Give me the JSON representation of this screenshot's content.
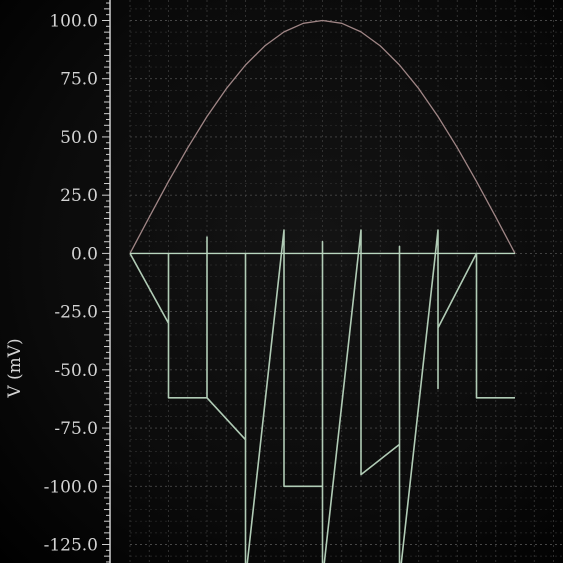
{
  "chart_data": {
    "type": "line",
    "xlabel": "",
    "ylabel": "V (mV)",
    "ylim": [
      -135,
      108
    ],
    "xlim": [
      0,
      10
    ],
    "yticks": [
      100,
      75,
      50,
      25,
      0,
      -25,
      -50,
      -75,
      -100,
      -125
    ],
    "ytick_labels": [
      "100.0",
      "75.0",
      "50.0",
      "25.0",
      "0.0",
      "-25.0",
      "-50.0",
      "-75.0",
      "-100.0",
      "-125.0"
    ],
    "grid": true,
    "series": [
      {
        "name": "",
        "color": "#a88c8c",
        "x": [
          0,
          0.5,
          1,
          1.5,
          2,
          2.5,
          3,
          3.5,
          4,
          4.5,
          5,
          5.5,
          6,
          6.5,
          7,
          7.5,
          8,
          8.5,
          9,
          9.5,
          10
        ],
        "y": [
          0,
          15.6,
          30.9,
          45.4,
          58.8,
          70.7,
          80.9,
          89.1,
          95.1,
          98.8,
          100,
          98.8,
          95.1,
          89.1,
          80.9,
          70.7,
          58.8,
          45.4,
          30.9,
          15.6,
          0
        ]
      },
      {
        "name": "",
        "color": "#b9d6bf",
        "x": [
          0,
          1,
          1,
          1,
          1,
          2,
          2,
          2,
          2,
          3,
          3,
          3,
          4,
          4,
          4,
          4,
          5,
          5,
          5,
          6,
          6,
          6,
          6,
          7,
          7,
          7,
          8,
          8,
          8,
          8,
          9,
          9,
          9,
          9,
          10
        ],
        "y": [
          0,
          -30,
          0,
          -62,
          -62,
          -62,
          7,
          -62,
          -62,
          -80,
          0,
          -140,
          10,
          -95,
          -95,
          -100,
          -100,
          5,
          -140,
          10,
          -90,
          -95,
          -95,
          -82,
          3,
          -140,
          10,
          -58,
          -58,
          -32,
          0,
          -62,
          -62,
          -62,
          -62
        ]
      }
    ]
  }
}
